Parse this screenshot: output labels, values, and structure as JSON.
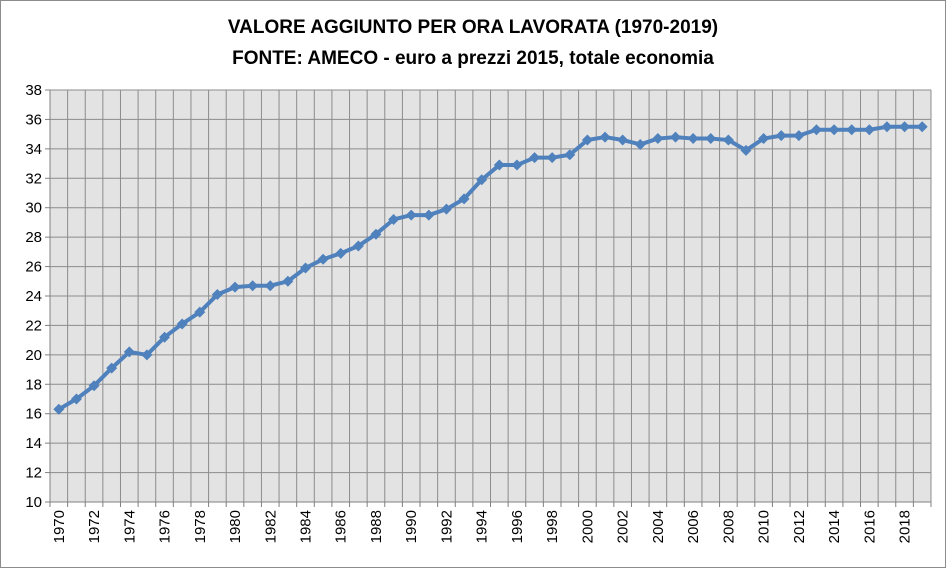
{
  "chart_data": {
    "type": "line",
    "title": "VALORE AGGIUNTO PER ORA LAVORATA (1970-2019)",
    "subtitle": "FONTE: AMECO - euro a prezzi 2015, totale economia",
    "xlabel": "",
    "ylabel": "",
    "xlim": [
      1970,
      2019
    ],
    "ylim": [
      10,
      38
    ],
    "y_ticks": [
      10,
      12,
      14,
      16,
      18,
      20,
      22,
      24,
      26,
      28,
      30,
      32,
      34,
      36,
      38
    ],
    "x_tick_labels": [
      "1970",
      "1972",
      "1974",
      "1976",
      "1978",
      "1980",
      "1982",
      "1984",
      "1986",
      "1988",
      "1990",
      "1992",
      "1994",
      "1996",
      "1998",
      "2000",
      "2002",
      "2004",
      "2006",
      "2008",
      "2010",
      "2012",
      "2014",
      "2016",
      "2018"
    ],
    "grid": true,
    "legend": "none",
    "colors": {
      "line": "#4f81bd",
      "plot_background": "#e3e3e3",
      "grid": "#8c8c8c"
    },
    "series": [
      {
        "x": [
          1970,
          1971,
          1972,
          1973,
          1974,
          1975,
          1976,
          1977,
          1978,
          1979,
          1980,
          1981,
          1982,
          1983,
          1984,
          1985,
          1986,
          1987,
          1988,
          1989,
          1990,
          1991,
          1992,
          1993,
          1994,
          1995,
          1996,
          1997,
          1998,
          1999,
          2000,
          2001,
          2002,
          2003,
          2004,
          2005,
          2006,
          2007,
          2008,
          2009,
          2010,
          2011,
          2012,
          2013,
          2014,
          2015,
          2016,
          2017,
          2018,
          2019
        ],
        "values": [
          16.3,
          17.0,
          17.9,
          19.1,
          20.2,
          20.0,
          21.2,
          22.1,
          22.9,
          24.1,
          24.6,
          24.7,
          24.7,
          25.0,
          25.9,
          26.5,
          26.9,
          27.4,
          28.2,
          29.2,
          29.5,
          29.5,
          29.9,
          30.6,
          31.9,
          32.9,
          32.9,
          33.4,
          33.4,
          33.6,
          34.6,
          34.8,
          34.6,
          34.3,
          34.7,
          34.8,
          34.7,
          34.7,
          34.6,
          33.9,
          34.7,
          34.9,
          34.9,
          35.3,
          35.3,
          35.3,
          35.3,
          35.5,
          35.5,
          35.5
        ]
      }
    ]
  }
}
